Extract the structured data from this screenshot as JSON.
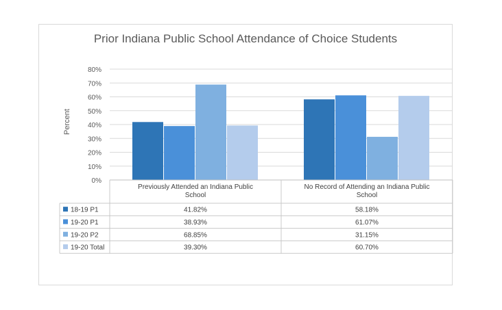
{
  "chart_data": {
    "type": "bar",
    "title": "Prior Indiana Public School Attendance of Choice Students",
    "ylabel": "Percent",
    "xlabel": "",
    "ylim": [
      0,
      80
    ],
    "yticks": [
      "0%",
      "10%",
      "20%",
      "30%",
      "40%",
      "50%",
      "60%",
      "70%",
      "80%"
    ],
    "grid": true,
    "legend": "data-table-left",
    "categories": [
      [
        "Previously Attended an Indiana Public",
        "School"
      ],
      [
        "No Record of Attending an Indiana Public",
        "School"
      ]
    ],
    "series": [
      {
        "name": "18-19 P1",
        "color": "#2e75b6",
        "values": [
          41.82,
          58.18
        ],
        "labels": [
          "41.82%",
          "58.18%"
        ]
      },
      {
        "name": "19-20 P1",
        "color": "#4a90d9",
        "values": [
          38.93,
          61.07
        ],
        "labels": [
          "38.93%",
          "61.07%"
        ]
      },
      {
        "name": "19-20 P2",
        "color": "#7fb0e0",
        "values": [
          68.85,
          31.15
        ],
        "labels": [
          "68.85%",
          "31.15%"
        ]
      },
      {
        "name": "19-20 Total",
        "color": "#b4ccec",
        "values": [
          39.3,
          60.7
        ],
        "labels": [
          "39.30%",
          "60.70%"
        ]
      }
    ]
  }
}
